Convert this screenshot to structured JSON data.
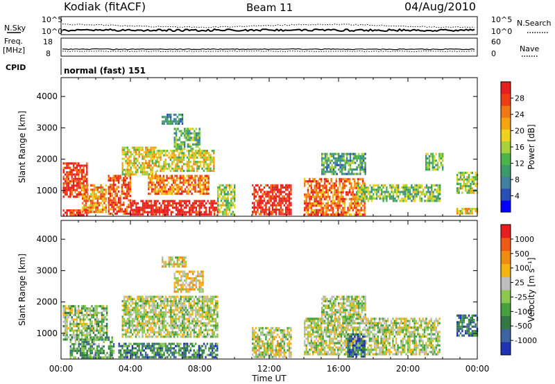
{
  "header": {
    "station": "Kodiak (fitACF)",
    "beam": "Beam 11",
    "date": "04/Aug/2010"
  },
  "strip_top": {
    "left_label": "N.Sky",
    "right_label": "N.Search",
    "left_ticks": [
      "10^5",
      "10^0"
    ],
    "right_ticks": [
      "10^5",
      "10^0"
    ]
  },
  "strip_freq": {
    "left_label_line1": "Freq.",
    "left_label_line2": "[MHz]",
    "right_label": "Nave",
    "left_ticks": [
      "18",
      "8"
    ],
    "right_ticks": [
      "60",
      "0"
    ]
  },
  "cpid": {
    "label": "CPID",
    "value": "normal (fast) 151"
  },
  "chart_data": [
    {
      "type": "heatmap",
      "panel": "power",
      "ylabel": "Slant Range [km]",
      "ylim": [
        180,
        4600
      ],
      "yticks": [
        1000,
        2000,
        3000,
        4000
      ],
      "xlim": [
        0,
        24
      ],
      "colorbar": {
        "label": "Power [dB]",
        "ticks": [
          "28",
          "24",
          "20",
          "16",
          "12",
          "8",
          "4"
        ],
        "colors": [
          "#0000ff",
          "#2a4fb4",
          "#3f7fa0",
          "#3c9a6a",
          "#4cb44a",
          "#a8d23c",
          "#f0d21e",
          "#f5a50f",
          "#f07814",
          "#f03c14",
          "#e61e1e"
        ]
      },
      "echo_regions": [
        {
          "x": [
            0.1,
            1.5
          ],
          "y": [
            800,
            1900
          ],
          "level": 0.9
        },
        {
          "x": [
            0.1,
            1.6
          ],
          "y": [
            200,
            400
          ],
          "level": 0.95
        },
        {
          "x": [
            1.2,
            2.6
          ],
          "y": [
            300,
            1200
          ],
          "level": 0.7
        },
        {
          "x": [
            2.7,
            4.0
          ],
          "y": [
            250,
            1500
          ],
          "level": 0.85
        },
        {
          "x": [
            3.5,
            5.5
          ],
          "y": [
            1500,
            2400
          ],
          "level": 0.6
        },
        {
          "x": [
            4.0,
            9.0
          ],
          "y": [
            250,
            700
          ],
          "level": 1.0
        },
        {
          "x": [
            5.0,
            8.5
          ],
          "y": [
            900,
            1500
          ],
          "level": 0.75
        },
        {
          "x": [
            5.5,
            8.8
          ],
          "y": [
            1600,
            2300
          ],
          "level": 0.55
        },
        {
          "x": [
            6.5,
            8.0
          ],
          "y": [
            2300,
            3000
          ],
          "level": 0.4
        },
        {
          "x": [
            5.8,
            7.0
          ],
          "y": [
            3100,
            3450
          ],
          "level": 0.3
        },
        {
          "x": [
            9.0,
            10.0
          ],
          "y": [
            250,
            1200
          ],
          "level": 0.5
        },
        {
          "x": [
            11.0,
            13.3
          ],
          "y": [
            250,
            1200
          ],
          "level": 0.95
        },
        {
          "x": [
            14.0,
            17.5
          ],
          "y": [
            250,
            1400
          ],
          "level": 0.8
        },
        {
          "x": [
            15.0,
            17.5
          ],
          "y": [
            1500,
            2200
          ],
          "level": 0.35
        },
        {
          "x": [
            17.0,
            21.8
          ],
          "y": [
            700,
            1200
          ],
          "level": 0.45
        },
        {
          "x": [
            21.0,
            22.0
          ],
          "y": [
            1700,
            2200
          ],
          "level": 0.4
        },
        {
          "x": [
            22.8,
            24.0
          ],
          "y": [
            900,
            1600
          ],
          "level": 0.5
        },
        {
          "x": [
            22.8,
            24.0
          ],
          "y": [
            250,
            450
          ],
          "level": 0.6
        }
      ]
    },
    {
      "type": "heatmap",
      "panel": "velocity",
      "ylabel": "Slant Range [km]",
      "xlabel": "Time UT",
      "ylim": [
        180,
        4600
      ],
      "yticks": [
        1000,
        2000,
        3000,
        4000
      ],
      "xlim": [
        0,
        24
      ],
      "xtick_labels": [
        "00:00",
        "04:00",
        "08:00",
        "12:00",
        "16:00",
        "20:00",
        "00:00"
      ],
      "colorbar": {
        "label": "Velocity [m s⁻¹]",
        "ticks": [
          "1000",
          "500",
          "100",
          "25",
          "-25",
          "-100",
          "-500",
          "-1000"
        ],
        "colors": [
          "#1e32b4",
          "#3c64a0",
          "#327846",
          "#46a03c",
          "#8cc850",
          "#bebebe",
          "#f5b40f",
          "#f08c0f",
          "#f05a14",
          "#e61e1e"
        ]
      },
      "echo_regions": [
        {
          "x": [
            0.1,
            2.6
          ],
          "y": [
            800,
            1900
          ],
          "level": 0.45
        },
        {
          "x": [
            0.5,
            3.0
          ],
          "y": [
            250,
            900
          ],
          "level": 0.35
        },
        {
          "x": [
            3.3,
            9.0
          ],
          "y": [
            250,
            700
          ],
          "level": 0.25
        },
        {
          "x": [
            3.5,
            9.0
          ],
          "y": [
            900,
            2200
          ],
          "level": 0.5
        },
        {
          "x": [
            6.5,
            8.2
          ],
          "y": [
            2300,
            3000
          ],
          "level": 0.6
        },
        {
          "x": [
            5.8,
            7.2
          ],
          "y": [
            3100,
            3450
          ],
          "level": 0.55
        },
        {
          "x": [
            11.0,
            13.3
          ],
          "y": [
            250,
            1200
          ],
          "level": 0.52
        },
        {
          "x": [
            14.0,
            21.8
          ],
          "y": [
            300,
            1500
          ],
          "level": 0.5
        },
        {
          "x": [
            15.0,
            17.5
          ],
          "y": [
            1500,
            2200
          ],
          "level": 0.5
        },
        {
          "x": [
            16.5,
            17.5
          ],
          "y": [
            250,
            1000
          ],
          "level": 0.15
        },
        {
          "x": [
            22.8,
            24.0
          ],
          "y": [
            900,
            1600
          ],
          "level": 0.2
        }
      ]
    }
  ]
}
